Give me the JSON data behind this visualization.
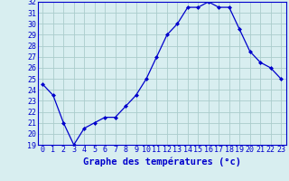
{
  "hours": [
    0,
    1,
    2,
    3,
    4,
    5,
    6,
    7,
    8,
    9,
    10,
    11,
    12,
    13,
    14,
    15,
    16,
    17,
    18,
    19,
    20,
    21,
    22,
    23
  ],
  "temperatures": [
    24.5,
    23.5,
    21.0,
    19.0,
    20.5,
    21.0,
    21.5,
    21.5,
    22.5,
    23.5,
    25.0,
    27.0,
    29.0,
    30.0,
    31.5,
    31.5,
    32.0,
    31.5,
    31.5,
    29.5,
    27.5,
    26.5,
    26.0,
    25.0
  ],
  "xlabel": "Graphe des températures (°c)",
  "ylim": [
    19,
    32
  ],
  "xlim_min": -0.5,
  "xlim_max": 23.5,
  "yticks": [
    19,
    20,
    21,
    22,
    23,
    24,
    25,
    26,
    27,
    28,
    29,
    30,
    31,
    32
  ],
  "xtick_labels": [
    "0",
    "1",
    "2",
    "3",
    "4",
    "5",
    "6",
    "7",
    "8",
    "9",
    "10",
    "11",
    "12",
    "13",
    "14",
    "15",
    "16",
    "17",
    "18",
    "19",
    "20",
    "21",
    "22",
    "23"
  ],
  "line_color": "#0000cc",
  "marker": "D",
  "marker_size": 2.0,
  "bg_color": "#d8eef0",
  "grid_color": "#aacccc",
  "xlabel_fontsize": 7.5,
  "tick_fontsize": 6.0,
  "linewidth": 0.9
}
